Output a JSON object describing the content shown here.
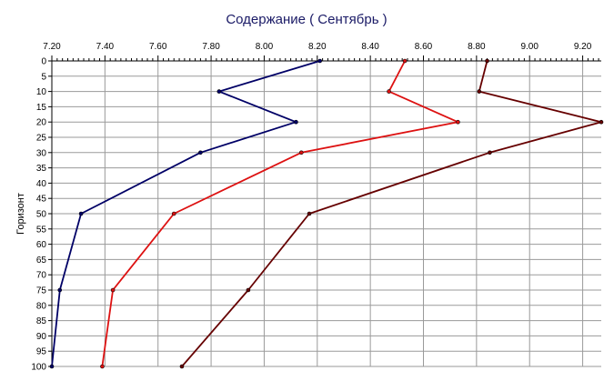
{
  "chart_data": {
    "type": "line",
    "title": "Содержание    ( Сентябрь )",
    "xlabel": "",
    "ylabel": "Горизонт",
    "x_axis_position": "top",
    "y_axis_inverted": true,
    "xlim": [
      7.2,
      9.27
    ],
    "ylim": [
      0,
      100
    ],
    "x_ticks": [
      "7.20",
      "7.40",
      "7.60",
      "7.80",
      "8.00",
      "8.20",
      "8.40",
      "8.60",
      "8.80",
      "9.00",
      "9.20"
    ],
    "y_ticks": [
      "0",
      "5",
      "10",
      "15",
      "20",
      "25",
      "30",
      "35",
      "40",
      "45",
      "50",
      "55",
      "60",
      "65",
      "70",
      "75",
      "80",
      "85",
      "90",
      "95",
      "100"
    ],
    "grid": true,
    "series": [
      {
        "color": "#000066",
        "points": [
          {
            "x": 8.21,
            "y": 0
          },
          {
            "x": 7.83,
            "y": 10
          },
          {
            "x": 8.12,
            "y": 20
          },
          {
            "x": 7.76,
            "y": 30
          },
          {
            "x": 7.31,
            "y": 50
          },
          {
            "x": 7.23,
            "y": 75
          },
          {
            "x": 7.2,
            "y": 100
          }
        ]
      },
      {
        "color": "#dd1111",
        "points": [
          {
            "x": 8.53,
            "y": 0
          },
          {
            "x": 8.47,
            "y": 10
          },
          {
            "x": 8.73,
            "y": 20
          },
          {
            "x": 8.14,
            "y": 30
          },
          {
            "x": 7.66,
            "y": 50
          },
          {
            "x": 7.43,
            "y": 75
          },
          {
            "x": 7.39,
            "y": 100
          }
        ]
      },
      {
        "color": "#660000",
        "points": [
          {
            "x": 8.84,
            "y": 0
          },
          {
            "x": 8.81,
            "y": 10
          },
          {
            "x": 9.27,
            "y": 20
          },
          {
            "x": 8.85,
            "y": 30
          },
          {
            "x": 8.17,
            "y": 50
          },
          {
            "x": 7.94,
            "y": 75
          },
          {
            "x": 7.69,
            "y": 100
          }
        ]
      }
    ]
  },
  "colors": {
    "grid": "#9a9a9a",
    "axis": "#000000",
    "title": "#1a1a66"
  }
}
